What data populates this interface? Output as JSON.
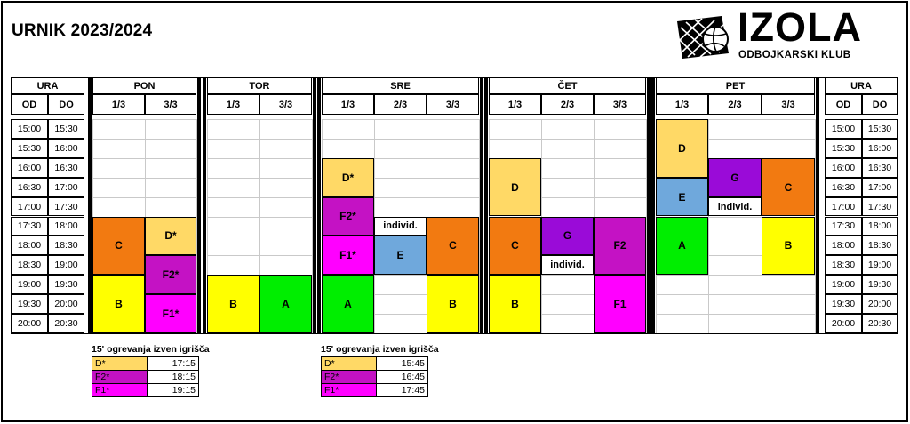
{
  "title": "URNIK 2023/2024",
  "logo": {
    "name": "IZOLA",
    "subtitle": "ODBOJKARSKI KLUB",
    "icon": "volleyball-net-icon"
  },
  "colors": {
    "D": "#ffd966",
    "C": "#f27a11",
    "B": "#ffff00",
    "A": "#00ee00",
    "E": "#6fa8dc",
    "G": "#9a0bd8",
    "F2": "#c412c4",
    "F1": "#ff00ff"
  },
  "time_headers": {
    "group": "URA",
    "from": "OD",
    "to": "DO"
  },
  "days": [
    {
      "name": "PON",
      "courts": [
        "1/3",
        "3/3"
      ]
    },
    {
      "name": "TOR",
      "courts": [
        "1/3",
        "3/3"
      ]
    },
    {
      "name": "SRE",
      "courts": [
        "1/3",
        "2/3",
        "3/3"
      ]
    },
    {
      "name": "ČET",
      "courts": [
        "1/3",
        "2/3",
        "3/3"
      ]
    },
    {
      "name": "PET",
      "courts": [
        "1/3",
        "2/3",
        "3/3"
      ]
    }
  ],
  "slots": [
    [
      "15:00",
      "15:30"
    ],
    [
      "15:30",
      "16:00"
    ],
    [
      "16:00",
      "16:30"
    ],
    [
      "16:30",
      "17:00"
    ],
    [
      "17:00",
      "17:30"
    ],
    [
      "17:30",
      "18:00"
    ],
    [
      "18:00",
      "18:30"
    ],
    [
      "18:30",
      "19:00"
    ],
    [
      "19:00",
      "19:30"
    ],
    [
      "19:30",
      "20:00"
    ],
    [
      "20:00",
      "20:30"
    ]
  ],
  "blocks": [
    {
      "day": 0,
      "court": 0,
      "start": 5,
      "span": 3,
      "label": "C",
      "color": "C"
    },
    {
      "day": 0,
      "court": 1,
      "start": 5,
      "span": 2,
      "label": "D*",
      "color": "D"
    },
    {
      "day": 0,
      "court": 1,
      "start": 7,
      "span": 2,
      "label": "F2*",
      "color": "F2"
    },
    {
      "day": 0,
      "court": 0,
      "start": 8,
      "span": 3,
      "label": "B",
      "color": "B"
    },
    {
      "day": 0,
      "court": 1,
      "start": 9,
      "span": 2,
      "label": "F1*",
      "color": "F1"
    },
    {
      "day": 1,
      "court": 0,
      "start": 8,
      "span": 3,
      "label": "B",
      "color": "B"
    },
    {
      "day": 1,
      "court": 1,
      "start": 8,
      "span": 3,
      "label": "A",
      "color": "A"
    },
    {
      "day": 2,
      "court": 0,
      "start": 2,
      "span": 2,
      "label": "D*",
      "color": "D"
    },
    {
      "day": 2,
      "court": 0,
      "start": 4,
      "span": 2,
      "label": "F2*",
      "color": "F2"
    },
    {
      "day": 2,
      "court": 0,
      "start": 6,
      "span": 2,
      "label": "F1*",
      "color": "F1"
    },
    {
      "day": 2,
      "court": 1,
      "start": 6,
      "span": 2,
      "label": "E",
      "color": "E"
    },
    {
      "day": 2,
      "court": 2,
      "start": 5,
      "span": 3,
      "label": "C",
      "color": "C"
    },
    {
      "day": 2,
      "court": 0,
      "start": 8,
      "span": 3,
      "label": "A",
      "color": "A"
    },
    {
      "day": 2,
      "court": 2,
      "start": 8,
      "span": 3,
      "label": "B",
      "color": "B"
    },
    {
      "day": 3,
      "court": 0,
      "start": 2,
      "span": 3,
      "label": "D",
      "color": "D"
    },
    {
      "day": 3,
      "court": 0,
      "start": 5,
      "span": 3,
      "label": "C",
      "color": "C"
    },
    {
      "day": 3,
      "court": 1,
      "start": 5,
      "span": 2,
      "label": "G",
      "color": "G"
    },
    {
      "day": 3,
      "court": 2,
      "start": 5,
      "span": 3,
      "label": "F2",
      "color": "F2"
    },
    {
      "day": 3,
      "court": 0,
      "start": 8,
      "span": 3,
      "label": "B",
      "color": "B"
    },
    {
      "day": 3,
      "court": 2,
      "start": 8,
      "span": 3,
      "label": "F1",
      "color": "F1"
    },
    {
      "day": 4,
      "court": 0,
      "start": 0,
      "span": 3,
      "label": "D",
      "color": "D"
    },
    {
      "day": 4,
      "court": 0,
      "start": 3,
      "span": 2,
      "label": "E",
      "color": "E"
    },
    {
      "day": 4,
      "court": 1,
      "start": 2,
      "span": 2,
      "label": "G",
      "color": "G"
    },
    {
      "day": 4,
      "court": 2,
      "start": 2,
      "span": 3,
      "label": "C",
      "color": "C"
    },
    {
      "day": 4,
      "court": 0,
      "start": 5,
      "span": 3,
      "label": "A",
      "color": "A"
    },
    {
      "day": 4,
      "court": 2,
      "start": 5,
      "span": 3,
      "label": "B",
      "color": "B"
    }
  ],
  "notes": [
    {
      "day": 2,
      "court": 1,
      "start": 5,
      "label": "individ."
    },
    {
      "day": 3,
      "court": 1,
      "start": 7,
      "label": "individ."
    },
    {
      "day": 4,
      "court": 1,
      "start": 4,
      "label": "individ."
    }
  ],
  "legends": [
    {
      "title": "15' ogrevanja izven igrišča",
      "rows": [
        {
          "group": "D*",
          "time": "17:15",
          "color": "D"
        },
        {
          "group": "F2*",
          "time": "18:15",
          "color": "F2"
        },
        {
          "group": "F1*",
          "time": "19:15",
          "color": "F1"
        }
      ]
    },
    {
      "title": "15' ogrevanja izven igrišča",
      "rows": [
        {
          "group": "D*",
          "time": "15:45",
          "color": "D"
        },
        {
          "group": "F2*",
          "time": "16:45",
          "color": "F2"
        },
        {
          "group": "F1*",
          "time": "17:45",
          "color": "F1"
        }
      ]
    }
  ]
}
